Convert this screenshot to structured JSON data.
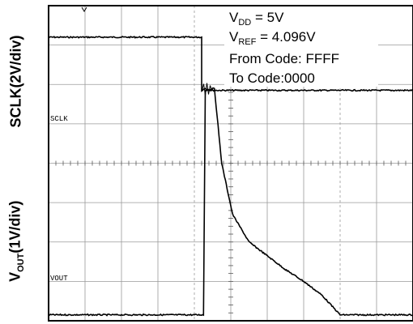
{
  "chart_data": {
    "type": "line",
    "title": "",
    "y_axis_labels": {
      "top": "SCLK(2V/div)",
      "bottom_main": "V",
      "bottom_sub": "OUT",
      "bottom_rest": "(1V/div)"
    },
    "channel_labels": [
      "SCLK",
      "VOUT"
    ],
    "grid": true,
    "divisions": {
      "x": 10,
      "y": 8
    },
    "annotations": {
      "vdd": {
        "main": "V",
        "sub": "DD",
        "rest": " = 5V"
      },
      "vref": {
        "main": "V",
        "sub": "REF",
        "rest": " = 4.096V"
      },
      "from_code": "From Code: FFFF",
      "to_code": "To Code:0000"
    },
    "series": [
      {
        "color": "#000000",
        "x_div": [
          0,
          4.2,
          4.2,
          4.3,
          4.45,
          10
        ],
        "y_div": [
          7.2,
          7.2,
          5.85,
          5.9,
          5.85,
          5.85
        ]
      },
      {
        "color": "#000000",
        "x_div": [
          0,
          4.25,
          4.3,
          4.55,
          4.75,
          5.05,
          5.5,
          6.0,
          6.5,
          7.0,
          7.5,
          7.85,
          8.0,
          10
        ],
        "y_div": [
          0.15,
          0.15,
          5.85,
          5.9,
          4.0,
          2.7,
          2.0,
          1.65,
          1.3,
          1.0,
          0.65,
          0.3,
          0.15,
          0.15
        ]
      }
    ]
  }
}
